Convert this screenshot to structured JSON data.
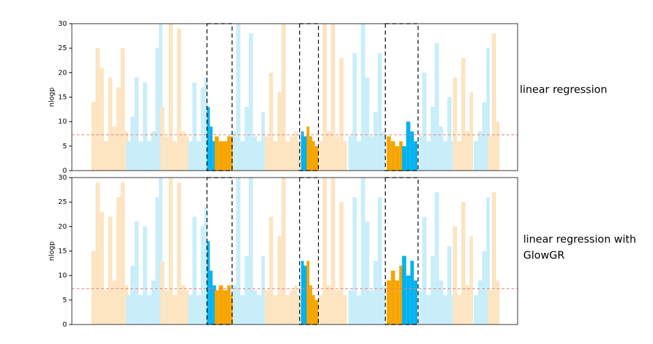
{
  "chart_data": [
    {
      "type": "manhattan",
      "ylabel": "nlogp",
      "side_label": [
        "linear regression"
      ],
      "xlim": [
        0,
        640
      ],
      "ylim": [
        0,
        30
      ],
      "yticks": [
        0,
        5,
        10,
        15,
        20,
        25,
        30
      ],
      "threshold": 7.3,
      "threshold_color": "#e8807a",
      "highlights": [
        [
          194,
          230
        ],
        [
          327,
          354
        ],
        [
          450,
          497
        ]
      ],
      "series": [
        {
          "color": "#fde5c2",
          "x": [
            28,
            34,
            40,
            46,
            52,
            58,
            64,
            70,
            76
          ],
          "values": [
            14,
            25,
            21,
            6,
            19,
            9,
            17,
            25,
            8
          ]
        },
        {
          "color": "#c8eefa",
          "x": [
            78,
            84,
            90,
            96,
            102,
            108,
            114,
            120,
            125
          ],
          "values": [
            6,
            11,
            19,
            6,
            18,
            6,
            8,
            25,
            30
          ]
        },
        {
          "color": "#fde5c2",
          "x": [
            127,
            133,
            139,
            145,
            151,
            157,
            163
          ],
          "values": [
            13,
            7,
            30,
            6,
            29,
            8,
            7
          ]
        },
        {
          "color": "#c8eefa",
          "x": [
            167,
            173,
            179,
            185,
            190
          ],
          "values": [
            6,
            18,
            6,
            17,
            19
          ]
        },
        {
          "color": "#00b2ef",
          "x": [
            194,
            198,
            202
          ],
          "values": [
            13,
            9,
            6
          ]
        },
        {
          "color": "#f7a500",
          "x": [
            205,
            211,
            217,
            223,
            228
          ],
          "values": [
            7,
            6,
            6,
            7,
            7
          ]
        },
        {
          "color": "#c8eefa",
          "x": [
            231,
            236,
            242,
            248,
            254,
            260,
            266,
            272
          ],
          "values": [
            8,
            30,
            6,
            13,
            28,
            7,
            6,
            12
          ]
        },
        {
          "color": "#fde5c2",
          "x": [
            277,
            283,
            289,
            295,
            301,
            307,
            313,
            319,
            324
          ],
          "values": [
            7,
            20,
            6,
            16,
            30,
            6,
            7,
            8,
            6
          ]
        },
        {
          "color": "#00b2ef",
          "x": [
            329,
            333
          ],
          "values": [
            8,
            7
          ]
        },
        {
          "color": "#f7a500",
          "x": [
            337,
            341,
            345,
            349
          ],
          "values": [
            9,
            7,
            6,
            5
          ]
        },
        {
          "color": "#fde5c2",
          "x": [
            355,
            360,
            366,
            372,
            378,
            384,
            390
          ],
          "values": [
            6,
            30,
            8,
            30,
            7,
            23,
            6
          ]
        },
        {
          "color": "#c8eefa",
          "x": [
            397,
            403,
            409,
            415,
            421,
            427,
            433,
            439,
            445
          ],
          "values": [
            7,
            24,
            6,
            30,
            19,
            7,
            12,
            24,
            8
          ]
        },
        {
          "color": "#f7a500",
          "x": [
            452,
            458,
            464,
            470
          ],
          "values": [
            7,
            6,
            5,
            6
          ]
        },
        {
          "color": "#00b2ef",
          "x": [
            474,
            480,
            486,
            491
          ],
          "values": [
            5,
            10,
            8,
            6
          ]
        },
        {
          "color": "#c8eefa",
          "x": [
            498,
            503,
            509,
            515,
            521,
            527,
            533,
            539,
            545
          ],
          "values": [
            7,
            20,
            6,
            13,
            26,
            9,
            6,
            15,
            6
          ]
        },
        {
          "color": "#fde5c2",
          "x": [
            547,
            553,
            559,
            565,
            571
          ],
          "values": [
            19,
            6,
            23,
            8,
            16
          ]
        },
        {
          "color": "#c8eefa",
          "x": [
            577,
            583,
            589,
            595
          ],
          "values": [
            6,
            8,
            14,
            25
          ]
        },
        {
          "color": "#fde5c2",
          "x": [
            597,
            603,
            609
          ],
          "values": [
            7,
            28,
            10
          ]
        }
      ]
    },
    {
      "type": "manhattan",
      "ylabel": "nlogp",
      "side_label": [
        "linear regression with",
        "GlowGR"
      ],
      "xlim": [
        0,
        640
      ],
      "ylim": [
        0,
        30
      ],
      "yticks": [
        0,
        5,
        10,
        15,
        20,
        25,
        30
      ],
      "threshold": 7.3,
      "threshold_color": "#e8807a",
      "highlights": [
        [
          194,
          230
        ],
        [
          327,
          354
        ],
        [
          450,
          497
        ]
      ],
      "series": [
        {
          "color": "#fde5c2",
          "x": [
            28,
            34,
            40,
            46,
            52,
            58,
            64,
            70,
            76
          ],
          "values": [
            15,
            29,
            23,
            7,
            22,
            9,
            26,
            29,
            8
          ]
        },
        {
          "color": "#c8eefa",
          "x": [
            78,
            84,
            90,
            96,
            102,
            108,
            114,
            120,
            125
          ],
          "values": [
            6,
            12,
            21,
            6,
            20,
            6,
            9,
            26,
            30
          ]
        },
        {
          "color": "#fde5c2",
          "x": [
            127,
            133,
            139,
            145,
            151,
            157,
            163
          ],
          "values": [
            13,
            7,
            30,
            6,
            29,
            8,
            7
          ]
        },
        {
          "color": "#c8eefa",
          "x": [
            167,
            173,
            179,
            185,
            190
          ],
          "values": [
            6,
            22,
            6,
            20,
            24
          ]
        },
        {
          "color": "#00b2ef",
          "x": [
            194,
            198,
            202
          ],
          "values": [
            17,
            11,
            8
          ]
        },
        {
          "color": "#f7a500",
          "x": [
            205,
            211,
            217,
            223,
            228
          ],
          "values": [
            7,
            8,
            7,
            8,
            6
          ]
        },
        {
          "color": "#c8eefa",
          "x": [
            231,
            236,
            242,
            248,
            254,
            260,
            266,
            272
          ],
          "values": [
            8,
            30,
            6,
            14,
            30,
            7,
            6,
            14
          ]
        },
        {
          "color": "#fde5c2",
          "x": [
            277,
            283,
            289,
            295,
            301,
            307,
            313,
            319,
            324
          ],
          "values": [
            7,
            22,
            6,
            18,
            30,
            6,
            7,
            8,
            6
          ]
        },
        {
          "color": "#00b2ef",
          "x": [
            329,
            333
          ],
          "values": [
            13,
            12
          ]
        },
        {
          "color": "#f7a500",
          "x": [
            337,
            341,
            345,
            349
          ],
          "values": [
            13,
            8,
            6,
            5
          ]
        },
        {
          "color": "#fde5c2",
          "x": [
            355,
            360,
            366,
            372,
            378,
            384,
            390
          ],
          "values": [
            6,
            30,
            8,
            30,
            7,
            25,
            6
          ]
        },
        {
          "color": "#c8eefa",
          "x": [
            397,
            403,
            409,
            415,
            421,
            427,
            433,
            439,
            445
          ],
          "values": [
            7,
            26,
            6,
            30,
            21,
            7,
            13,
            26,
            8
          ]
        },
        {
          "color": "#f7a500",
          "x": [
            452,
            458,
            464,
            470
          ],
          "values": [
            9,
            11,
            9,
            12
          ]
        },
        {
          "color": "#00b2ef",
          "x": [
            474,
            480,
            486,
            491
          ],
          "values": [
            14,
            10,
            13,
            9
          ]
        },
        {
          "color": "#c8eefa",
          "x": [
            498,
            503,
            509,
            515,
            521,
            527,
            533,
            539,
            545
          ],
          "values": [
            7,
            22,
            6,
            14,
            27,
            9,
            6,
            16,
            6
          ]
        },
        {
          "color": "#fde5c2",
          "x": [
            547,
            553,
            559,
            565,
            571
          ],
          "values": [
            20,
            6,
            25,
            8,
            18
          ]
        },
        {
          "color": "#c8eefa",
          "x": [
            577,
            583,
            589,
            595
          ],
          "values": [
            6,
            9,
            15,
            26
          ]
        },
        {
          "color": "#fde5c2",
          "x": [
            597,
            603,
            609
          ],
          "values": [
            7,
            27,
            9
          ]
        }
      ]
    }
  ]
}
